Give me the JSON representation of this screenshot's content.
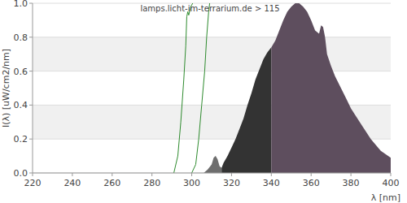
{
  "chart_data": {
    "type": "area",
    "title": "lamps.licht-im-terrarium.de > 115",
    "x_label": "λ [nm]",
    "y_label": "I(λ)  [uW/cm2/nm]",
    "xlim": [
      220,
      400
    ],
    "xticks": [
      220,
      240,
      260,
      280,
      300,
      320,
      340,
      360,
      380,
      400
    ],
    "ylim": [
      0,
      1
    ],
    "yticks": [
      {
        "value": 0,
        "label": "0.0"
      },
      0.2,
      0.4,
      0.6,
      0.8,
      {
        "value": 1,
        "label": "1.0"
      }
    ],
    "grid": true,
    "series": [
      {
        "type": "line",
        "color": "#2e8b2e",
        "x": [
          291,
          293,
          294.5,
          296,
          297,
          297.5,
          298,
          298.5,
          299.5,
          300.5
        ],
        "values": [
          0,
          0.1,
          0.3,
          0.55,
          0.75,
          0.92,
          0.95,
          0.93,
          0.98,
          1.0
        ]
      },
      {
        "type": "line",
        "color": "#2e8b2e",
        "x": [
          300,
          302,
          303.5,
          305,
          306.5,
          307.5,
          308.5,
          309
        ],
        "values": [
          0,
          0.05,
          0.2,
          0.4,
          0.6,
          0.8,
          0.95,
          1.0
        ]
      },
      {
        "type": "area",
        "color": "#6e6e6e",
        "x": [
          306,
          308,
          310,
          311,
          312,
          313,
          314,
          315
        ],
        "values": [
          0,
          0.02,
          0.05,
          0.09,
          0.1,
          0.08,
          0.04,
          0.03
        ]
      },
      {
        "type": "area",
        "color": "#333333",
        "x": [
          315,
          316,
          318,
          320,
          322,
          324,
          326,
          328,
          330,
          332,
          334,
          336,
          338,
          340
        ],
        "values": [
          0.03,
          0.06,
          0.1,
          0.15,
          0.2,
          0.26,
          0.32,
          0.4,
          0.47,
          0.55,
          0.61,
          0.67,
          0.71,
          0.74
        ]
      },
      {
        "type": "area",
        "color": "#5e4e5e",
        "x": [
          340,
          342,
          344,
          346,
          348,
          350,
          352,
          354,
          356,
          358,
          360,
          362,
          364,
          365,
          366,
          367,
          368,
          370,
          372,
          375,
          378,
          380,
          385,
          390,
          395,
          400
        ],
        "values": [
          0.74,
          0.78,
          0.84,
          0.9,
          0.95,
          0.98,
          1.0,
          1.0,
          0.98,
          0.95,
          0.9,
          0.84,
          0.82,
          0.87,
          0.86,
          0.8,
          0.7,
          0.63,
          0.57,
          0.5,
          0.43,
          0.38,
          0.29,
          0.2,
          0.13,
          0.09
        ]
      }
    ]
  }
}
